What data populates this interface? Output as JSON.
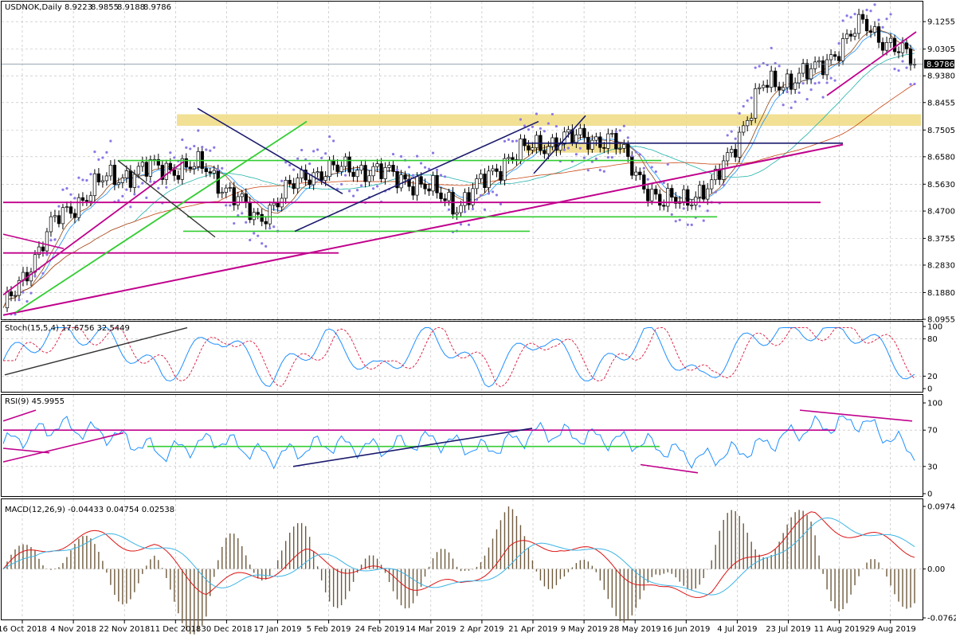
{
  "window": {
    "symbol_header": "USDNOK,Daily",
    "ohlc": [
      "8.9223",
      "8.9855",
      "8.9188",
      "8.9786"
    ]
  },
  "price_panel": {
    "y_ticks": [
      "9.1255",
      "9.0305",
      "8.9380",
      "8.8455",
      "8.7505",
      "8.6580",
      "8.5630",
      "8.4700",
      "8.3755",
      "8.2830",
      "8.1880",
      "8.0955"
    ],
    "current_price": "8.9786",
    "current_price_value": 8.9786
  },
  "stoch_panel": {
    "label": "Stoch(15,5,4) 17.6756 32.5449",
    "y_ticks": [
      "100",
      "80",
      "20",
      "0"
    ]
  },
  "rsi_panel": {
    "label": "RSI(9) 45.9955",
    "y_ticks": [
      "100",
      "70",
      "30",
      "0"
    ]
  },
  "macd_panel": {
    "label": "MACD(12,26,9) -0.04433 0.04754 0.02538",
    "y_ticks": [
      "0.09745",
      "0.00",
      "-0.07621"
    ]
  },
  "x_axis": {
    "labels": [
      "16 Oct 2018",
      "4 Nov 2018",
      "22 Nov 2018",
      "11 Dec 2018",
      "30 Dec 2018",
      "17 Jan 2019",
      "5 Feb 2019",
      "24 Feb 2019",
      "14 Mar 2019",
      "2 Apr 2019",
      "21 Apr 2019",
      "9 May 2019",
      "28 May 2019",
      "16 Jun 2019",
      "4 Jul 2019",
      "23 Jul 2019",
      "11 Aug 2019",
      "29 Aug 2019"
    ]
  },
  "colors": {
    "candle": "#000000",
    "zone": "#f0dc82",
    "magenta": "#c0008c",
    "green": "#32cd32",
    "navy": "#1a1a6e",
    "dots": "#8c78e6",
    "stoch_main": "#1e90ff",
    "stoch_signal": "#dc143c",
    "macd_main": "#3cb4e6",
    "macd_signal": "#dc1414",
    "macd_hist": "#6e5a3c",
    "ma_fast": "#1e90ff",
    "ma_slow": "#c84614"
  },
  "chart_data": {
    "type": "candlestick",
    "instrument": "USDNOK",
    "timeframe": "Daily",
    "close_path": [
      [
        "16 Oct 2018",
        8.12
      ],
      [
        "4 Nov 2018",
        8.43
      ],
      [
        "22 Nov 2018",
        8.58
      ],
      [
        "11 Dec 2018",
        8.62
      ],
      [
        "30 Dec 2018",
        8.62
      ],
      [
        "17 Jan 2019",
        8.44
      ],
      [
        "5 Feb 2019",
        8.6
      ],
      [
        "24 Feb 2019",
        8.62
      ],
      [
        "14 Mar 2019",
        8.58
      ],
      [
        "2 Apr 2019",
        8.49
      ],
      [
        "21 Apr 2019",
        8.66
      ],
      [
        "9 May 2019",
        8.72
      ],
      [
        "28 May 2019",
        8.72
      ],
      [
        "16 Jun 2019",
        8.49
      ],
      [
        "4 Jul 2019",
        8.55
      ],
      [
        "23 Jul 2019",
        8.9
      ],
      [
        "11 Aug 2019",
        8.95
      ],
      [
        "29 Aug 2019",
        9.12
      ],
      [
        "end",
        8.9786
      ]
    ],
    "stoch_k_path": [
      45,
      95,
      80,
      20,
      90,
      15,
      85,
      25,
      90,
      15,
      85,
      20,
      90,
      12,
      85,
      95,
      90,
      18
    ],
    "rsi_path": [
      55,
      75,
      65,
      45,
      60,
      40,
      55,
      50,
      60,
      48,
      68,
      62,
      55,
      38,
      50,
      72,
      80,
      46
    ],
    "macd_path": [
      0.0,
      0.04,
      0.05,
      0.03,
      -0.03,
      -0.01,
      0.02,
      0.0,
      -0.02,
      -0.03,
      0.03,
      0.04,
      0.01,
      -0.04,
      -0.03,
      0.03,
      0.08,
      0.05,
      0.03
    ]
  }
}
